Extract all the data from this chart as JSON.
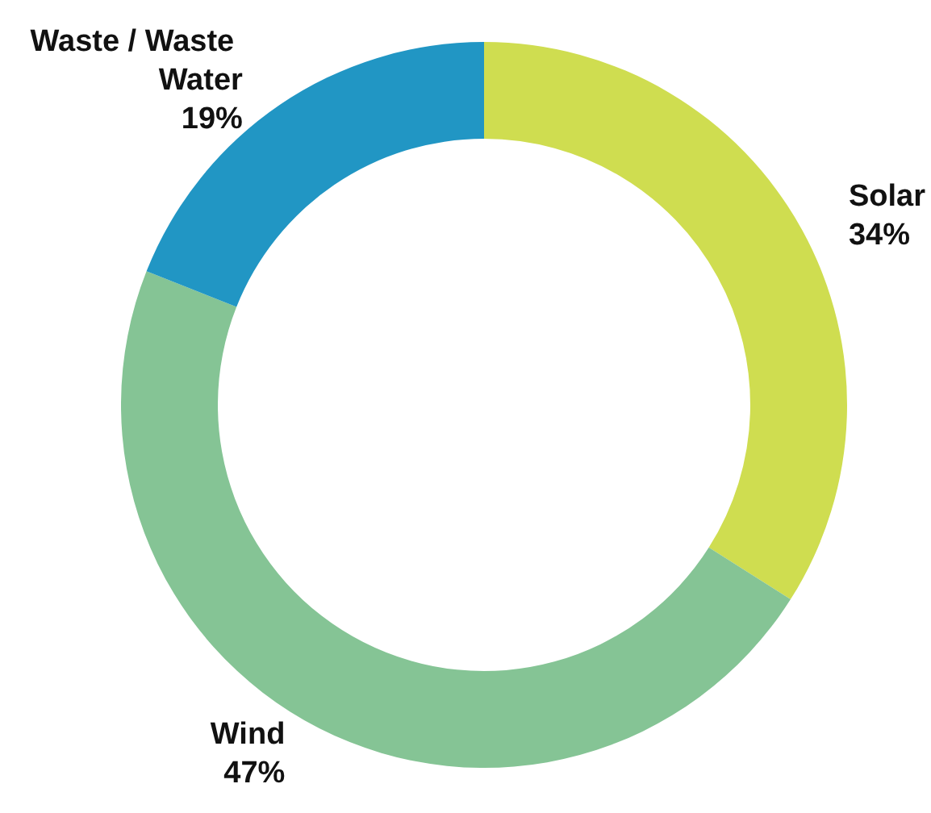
{
  "chart_data": {
    "type": "donut",
    "categories": [
      "Solar",
      "Wind",
      "Waste / Waste Water"
    ],
    "values": [
      34,
      47,
      19
    ],
    "colors": [
      "#cfdd50",
      "#85c495",
      "#2196c4"
    ],
    "value_labels": [
      "34%",
      "47%",
      "19%"
    ],
    "legend": false
  }
}
